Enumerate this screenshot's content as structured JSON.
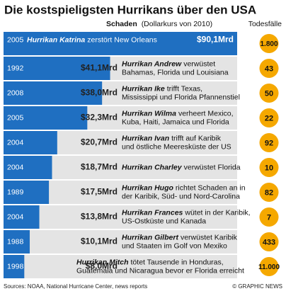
{
  "chart_data": {
    "type": "bar",
    "title": "Die kostspieligsten Hurrikans über den USA",
    "value_title": "Schaden",
    "value_note": "(Dollarkurs von 2010)",
    "deaths_title": "Todesfälle",
    "categories": [
      "2005",
      "1992",
      "2008",
      "2005",
      "2004",
      "2004",
      "1989",
      "2004",
      "1988",
      "1998"
    ],
    "values": [
      90.1,
      41.1,
      38.0,
      32.3,
      20.7,
      18.7,
      17.5,
      13.8,
      10.1,
      8.0
    ],
    "value_labels": [
      "$90,1Mrd",
      "$41,1Mrd",
      "$38,0Mrd",
      "$32,3Mrd",
      "$20,7Mrd",
      "$18,7Mrd",
      "$17,5Mrd",
      "$13,8Mrd",
      "$10,1Mrd",
      "$8,0Mrd"
    ],
    "color": "#1f6fc1",
    "notes": [
      {
        "name": "Hurrikan Katrina",
        "lines": [
          "zerstört New Orleans"
        ]
      },
      {
        "name": "Hurrikan Andrew",
        "lines": [
          "verwüstet",
          "Bahamas, Florida und Louisiana"
        ]
      },
      {
        "name": "Hurrikan Ike",
        "lines": [
          "trifft Texas,",
          "Mississippi und Florida Pfannenstiel"
        ]
      },
      {
        "name": "Hurrikan Wilma",
        "lines": [
          "verheert Mexico,",
          "Kuba, Haiti, Jamaica und Florida"
        ]
      },
      {
        "name": "Hurrikan Ivan",
        "lines": [
          "trifft auf Karibik",
          "und östliche Meeresküste der US"
        ]
      },
      {
        "name": "Hurrikan Charley",
        "lines": [
          "verwüstet Florida"
        ]
      },
      {
        "name": "Hurrikan Hugo",
        "lines": [
          "richtet Schaden an in",
          "der Karibik, Süd- und Nord-Carolina"
        ]
      },
      {
        "name": "Hurrikan Frances",
        "lines": [
          "wütet in der Karibik,",
          "US-Ostküste und Kanada"
        ]
      },
      {
        "name": "Hurrikan Gilbert",
        "lines": [
          "verwüstet Karibik",
          "und Staaten im Golf von Mexiko"
        ]
      },
      {
        "name": "Hurrikan Mitch",
        "lines": [
          "tötet Tausende in Honduras,",
          "Guatemala und Nicaragua bevor er Florida erreicht"
        ]
      }
    ],
    "deaths": [
      1800,
      43,
      50,
      22,
      92,
      10,
      82,
      7,
      433,
      11000
    ],
    "deaths_labels": [
      "1.800",
      "43",
      "50",
      "22",
      "92",
      "10",
      "82",
      "7",
      "433",
      "11.000"
    ],
    "deaths_color": "#f5a800",
    "source": "Sources: NOAA, National Hurricane Center, news reports",
    "credit": "© GRAPHIC NEWS"
  }
}
